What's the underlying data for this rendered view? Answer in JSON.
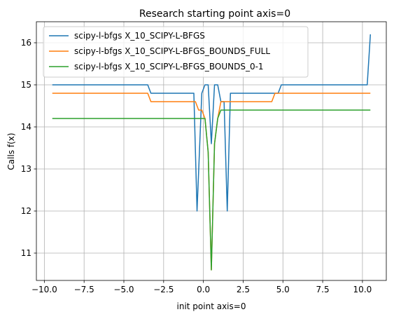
{
  "chart_data": {
    "type": "line",
    "title": "Research starting point axis=0",
    "xlabel": "init point axis=0",
    "ylabel": "Calls f(x)",
    "xlim": [
      -10.5,
      11.5
    ],
    "ylim": [
      10.35,
      16.5
    ],
    "xticks": [
      -10.0,
      -7.5,
      -5.0,
      -2.5,
      0.0,
      2.5,
      5.0,
      7.5,
      10.0
    ],
    "xtick_labels": [
      "−10.0",
      "−7.5",
      "−5.0",
      "−2.5",
      "0.0",
      "2.5",
      "5.0",
      "7.5",
      "10.0"
    ],
    "yticks": [
      11,
      12,
      13,
      14,
      15,
      16
    ],
    "ytick_labels": [
      "11",
      "12",
      "13",
      "14",
      "15",
      "16"
    ],
    "grid": true,
    "legend_position": "upper-left",
    "series": [
      {
        "name": "scipy-l-bfgs X_10_SCIPY-L-BFGS",
        "color": "#1f77b4",
        "x": [
          -9.5,
          -3.5,
          -3.3,
          -0.6,
          -0.4,
          -0.1,
          0.1,
          0.3,
          0.5,
          0.7,
          0.9,
          1.1,
          1.3,
          1.5,
          1.7,
          4.7,
          4.9,
          10.3,
          10.5
        ],
        "y": [
          15.0,
          15.0,
          14.8,
          14.8,
          12.0,
          14.8,
          15.0,
          15.0,
          13.6,
          15.0,
          15.0,
          14.6,
          14.6,
          12.0,
          14.8,
          14.8,
          15.0,
          15.0,
          16.2
        ]
      },
      {
        "name": "scipy-l-bfgs X_10_SCIPY-L-BFGS_BOUNDS_FULL",
        "color": "#ff7f0e",
        "x": [
          -9.5,
          -3.5,
          -3.3,
          -0.5,
          -0.3,
          -0.1,
          0.1,
          0.3,
          0.5,
          0.7,
          0.9,
          1.1,
          1.3,
          4.3,
          4.5,
          10.5
        ],
        "y": [
          14.8,
          14.8,
          14.6,
          14.6,
          14.4,
          14.4,
          14.2,
          13.4,
          10.6,
          13.6,
          14.2,
          14.6,
          14.6,
          14.6,
          14.8,
          14.8
        ]
      },
      {
        "name": "scipy-l-bfgs X_10_SCIPY-L-BFGS_BOUNDS_0-1",
        "color": "#2ca02c",
        "x": [
          -9.5,
          -0.1,
          0.1,
          0.3,
          0.5,
          0.7,
          0.9,
          1.1,
          10.5
        ],
        "y": [
          14.2,
          14.2,
          14.2,
          13.4,
          10.6,
          13.6,
          14.2,
          14.4,
          14.4
        ]
      }
    ]
  }
}
